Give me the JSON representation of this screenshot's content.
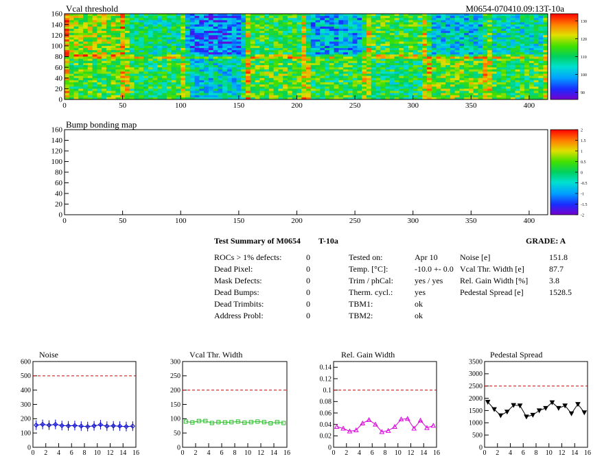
{
  "colors": {
    "frame": "#000000",
    "dashed": "#cc0000",
    "noise": "#0000cc",
    "vcal": "#22bb22",
    "gain": "#dd00dd",
    "pedestal": "#000000"
  },
  "summary": {
    "title": "Test Summary of M0654",
    "temp_tag": "T-10a",
    "grade": "GRADE:  A",
    "left": [
      {
        "label": "ROCs > 1% defects:",
        "value": "0"
      },
      {
        "label": "Dead Pixel:",
        "value": "0"
      },
      {
        "label": "Mask Defects:",
        "value": "0"
      },
      {
        "label": "Dead Bumps:",
        "value": "0"
      },
      {
        "label": "Dead Trimbits:",
        "value": "0"
      },
      {
        "label": "Address Probl:",
        "value": "0"
      }
    ],
    "middle": [
      {
        "label": "Tested on:",
        "value": "Apr 10"
      },
      {
        "label": "Temp. [°C]:",
        "value": "-10.0 +- 0.0"
      },
      {
        "label": "Trim / phCal:",
        "value": "yes / yes"
      },
      {
        "label": "Therm. cycl.:",
        "value": "yes"
      },
      {
        "label": "TBM1:",
        "value": "ok"
      },
      {
        "label": "TBM2:",
        "value": "ok"
      }
    ],
    "right": [
      {
        "label": "Noise [e]",
        "value": "151.8"
      },
      {
        "label": "Vcal Thr. Width [e]",
        "value": "87.7"
      },
      {
        "label": "Rel. Gain Width [%]",
        "value": "3.8"
      },
      {
        "label": "Pedestal Spread [e]",
        "value": "1528.5"
      }
    ]
  },
  "chart_data": [
    {
      "type": "heatmap",
      "title": "Vcal threshold",
      "title_right": "M0654-070410.09:13T-10a",
      "xlim": [
        0,
        416
      ],
      "ylim": [
        0,
        160
      ],
      "x_ticks": [
        0,
        50,
        100,
        150,
        200,
        250,
        300,
        350,
        400
      ],
      "y_ticks": [
        0,
        20,
        40,
        60,
        80,
        100,
        120,
        140,
        160
      ],
      "z_ticks": [
        90,
        100,
        110,
        120,
        130
      ],
      "roc_mean_top": [
        118,
        108,
        96,
        112,
        100,
        113,
        102,
        106
      ],
      "roc_mean_bottom": [
        114,
        112,
        104,
        115,
        112,
        110,
        116,
        113
      ]
    },
    {
      "type": "heatmap",
      "title": "Bump bonding map",
      "xlim": [
        0,
        416
      ],
      "ylim": [
        0,
        160
      ],
      "x_ticks": [
        0,
        50,
        100,
        150,
        200,
        250,
        300,
        350,
        400
      ],
      "y_ticks": [
        0,
        20,
        40,
        60,
        80,
        100,
        120,
        140,
        160
      ],
      "z_ticks": [
        -2,
        -1.5,
        -1,
        -0.5,
        0,
        0.5,
        1,
        1.5,
        2
      ]
    },
    {
      "type": "line",
      "title": "Noise",
      "xlim": [
        0,
        16
      ],
      "ylim": [
        0,
        600
      ],
      "x_ticks": [
        0,
        2,
        4,
        6,
        8,
        10,
        12,
        14,
        16
      ],
      "y_ticks": [
        0,
        100,
        200,
        300,
        400,
        500,
        600
      ],
      "threshold": 500,
      "x": [
        0.5,
        1.5,
        2.5,
        3.5,
        4.5,
        5.5,
        6.5,
        7.5,
        8.5,
        9.5,
        10.5,
        11.5,
        12.5,
        13.5,
        14.5,
        15.5
      ],
      "values": [
        155,
        160,
        155,
        160,
        152,
        150,
        152,
        148,
        145,
        150,
        158,
        148,
        150,
        148,
        145,
        148
      ]
    },
    {
      "type": "line",
      "title": "Vcal Thr. Width",
      "xlim": [
        0,
        16
      ],
      "ylim": [
        0,
        300
      ],
      "x_ticks": [
        0,
        2,
        4,
        6,
        8,
        10,
        12,
        14,
        16
      ],
      "y_ticks": [
        0,
        50,
        100,
        150,
        200,
        250,
        300
      ],
      "threshold": 200,
      "x": [
        0.5,
        1.5,
        2.5,
        3.5,
        4.5,
        5.5,
        6.5,
        7.5,
        8.5,
        9.5,
        10.5,
        11.5,
        12.5,
        13.5,
        14.5,
        15.5
      ],
      "values": [
        90,
        87,
        92,
        92,
        85,
        88,
        87,
        88,
        90,
        86,
        88,
        90,
        88,
        84,
        88,
        85
      ]
    },
    {
      "type": "line",
      "title": "Rel. Gain Width",
      "xlim": [
        0,
        16
      ],
      "ylim": [
        0,
        0.15
      ],
      "x_ticks": [
        0,
        2,
        4,
        6,
        8,
        10,
        12,
        14,
        16
      ],
      "y_ticks": [
        0,
        0.02,
        0.04,
        0.06,
        0.08,
        0.1,
        0.12,
        0.14
      ],
      "threshold": 0.1,
      "x": [
        0.5,
        1.5,
        2.5,
        3.5,
        4.5,
        5.5,
        6.5,
        7.5,
        8.5,
        9.5,
        10.5,
        11.5,
        12.5,
        13.5,
        14.5,
        15.5
      ],
      "values": [
        0.036,
        0.033,
        0.028,
        0.03,
        0.042,
        0.048,
        0.04,
        0.027,
        0.029,
        0.036,
        0.049,
        0.05,
        0.033,
        0.047,
        0.034,
        0.038
      ]
    },
    {
      "type": "line",
      "title": "Pedestal Spread",
      "xlim": [
        0,
        16
      ],
      "ylim": [
        0,
        3500
      ],
      "x_ticks": [
        0,
        2,
        4,
        6,
        8,
        10,
        12,
        14,
        16
      ],
      "y_ticks": [
        0,
        500,
        1000,
        1500,
        2000,
        2500,
        3000,
        3500
      ],
      "threshold": 2500,
      "x": [
        0.5,
        1.5,
        2.5,
        3.5,
        4.5,
        5.5,
        6.5,
        7.5,
        8.5,
        9.5,
        10.5,
        11.5,
        12.5,
        13.5,
        14.5,
        15.5
      ],
      "values": [
        1850,
        1550,
        1300,
        1450,
        1720,
        1700,
        1250,
        1320,
        1500,
        1600,
        1830,
        1600,
        1700,
        1380,
        1760,
        1420
      ]
    }
  ]
}
